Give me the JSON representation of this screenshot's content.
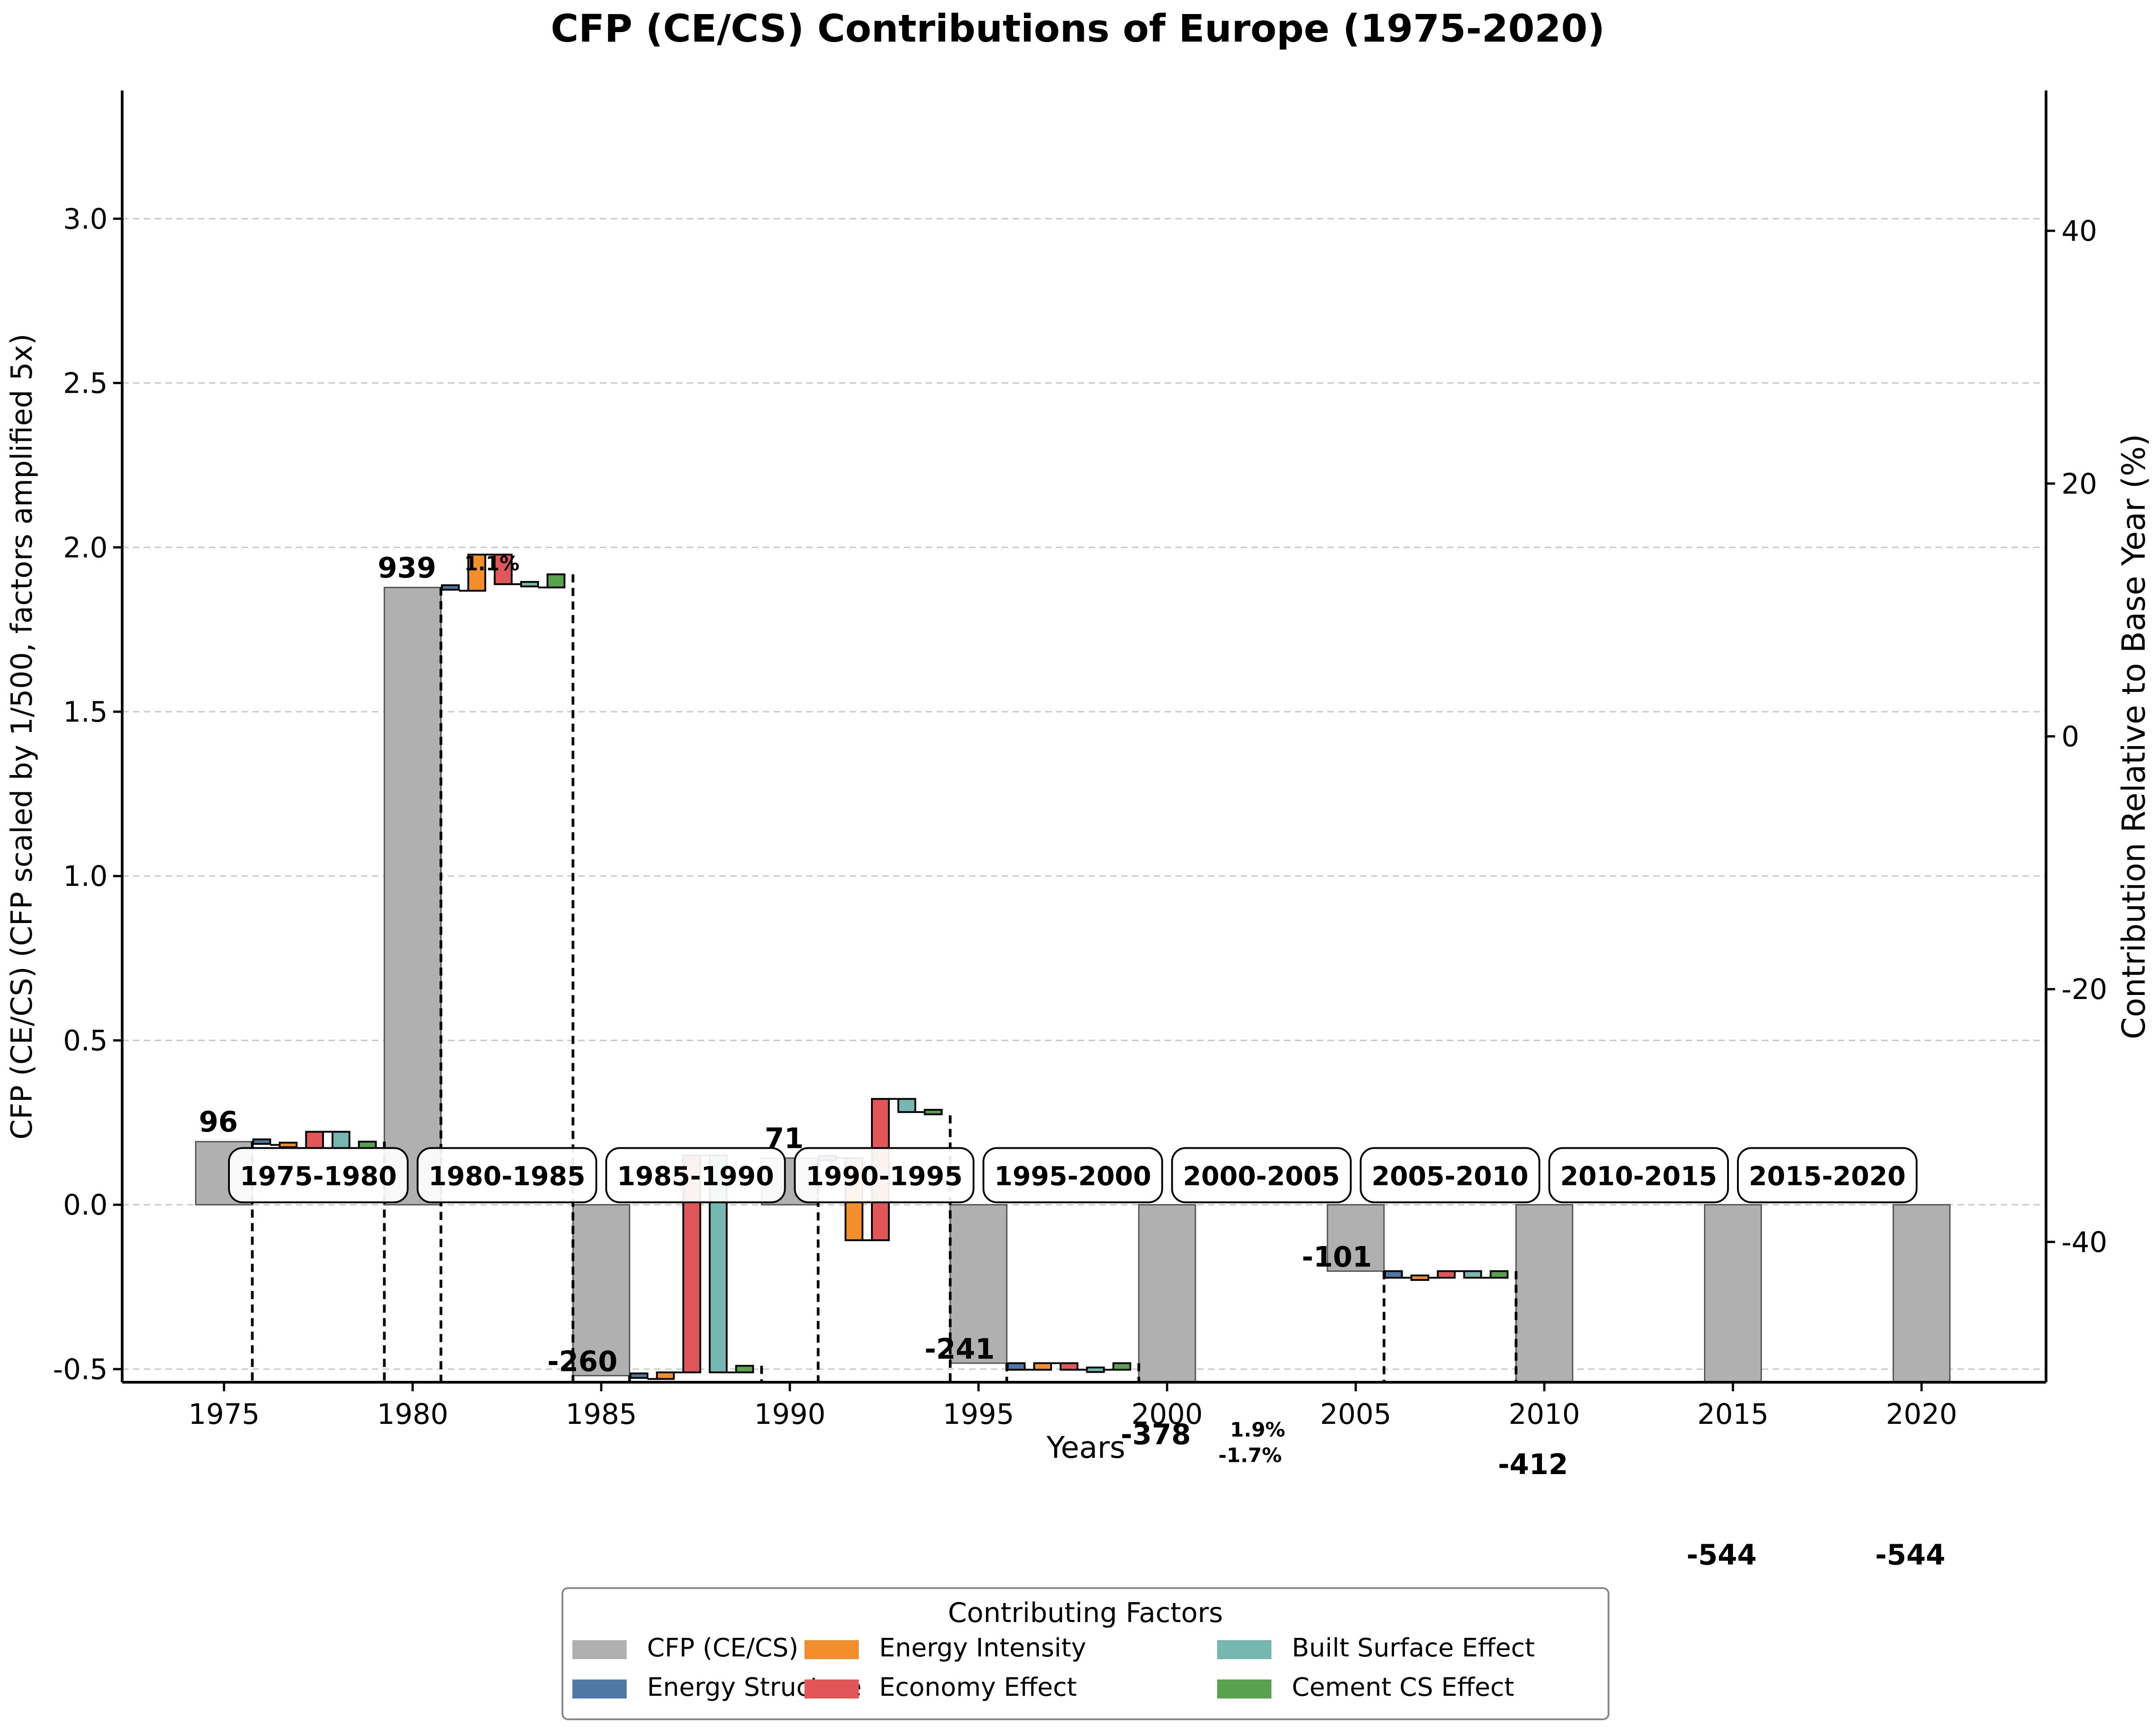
{
  "chart_data": {
    "type": "bar",
    "title": "CFP (CE/CS) Contributions of Europe (1975-2020)",
    "xlabel": "Years",
    "ylabel": "CFP (CE/CS) (CFP scaled by 1/500, factors amplified 5x)",
    "ylabel_right": "Contribution Relative to Base Year (%)",
    "xlim": [
      1972.3,
      2023.3
    ],
    "ylim": [
      -0.54,
      3.39
    ],
    "y2lim": [
      -51.1,
      51.1
    ],
    "xticks": [
      "1975",
      "1980",
      "1985",
      "1990",
      "1995",
      "2000",
      "2005",
      "2010",
      "2015",
      "2020"
    ],
    "yticks": [
      "-0.5",
      "0.0",
      "0.5",
      "1.0",
      "1.5",
      "2.0",
      "2.5",
      "3.0"
    ],
    "y2ticks": [
      "-40",
      "-20",
      "0",
      "20",
      "40"
    ],
    "grid": true,
    "legend": {
      "title": "Contributing Factors",
      "placement": "bottom-center",
      "entries": [
        {
          "label": "CFP (CE/CS)",
          "color": "#b0b0b0"
        },
        {
          "label": "Energy Structure",
          "color": "#4e79a7"
        },
        {
          "label": "Energy Intensity",
          "color": "#f28e2b"
        },
        {
          "label": "Economy Effect",
          "color": "#e15759"
        },
        {
          "label": "Built Surface Effect",
          "color": "#76b7b2"
        },
        {
          "label": "Cement CS Effect",
          "color": "#59a14f"
        }
      ]
    },
    "colors": {
      "cfp": "#b0b0b0",
      "energy_structure": "#4e79a7",
      "energy_intensity": "#f28e2b",
      "economy": "#e15759",
      "built_surface": "#76b7b2",
      "cement_cs": "#59a14f"
    },
    "cfp_bars": [
      {
        "year": 1975,
        "value": 96,
        "label": "96"
      },
      {
        "year": 1980,
        "value": 939,
        "label": "939"
      },
      {
        "year": 1985,
        "value": -260,
        "label": "-260"
      },
      {
        "year": 1990,
        "value": 71,
        "label": "71"
      },
      {
        "year": 1995,
        "value": -241,
        "label": "-241"
      },
      {
        "year": 2000,
        "value": -378,
        "label": "-378"
      },
      {
        "year": 2005,
        "value": -101,
        "label": "-101"
      },
      {
        "year": 2010,
        "value": -412,
        "label": "-412"
      },
      {
        "year": 2015,
        "value": -544,
        "label": "-544"
      },
      {
        "year": 2020,
        "value": -544,
        "label": "-544"
      }
    ],
    "periods": [
      {
        "label": "1975-1980",
        "start_year": 1975
      },
      {
        "label": "1980-1985",
        "start_year": 1980
      },
      {
        "label": "1985-1990",
        "start_year": 1985
      },
      {
        "label": "1990-1995",
        "start_year": 1990
      },
      {
        "label": "1995-2000",
        "start_year": 1995
      },
      {
        "label": "2000-2005",
        "start_year": 2000
      },
      {
        "label": "2005-2010",
        "start_year": 2005
      },
      {
        "label": "2010-2015",
        "start_year": 2010
      },
      {
        "label": "2015-2020",
        "start_year": 2015
      }
    ],
    "factor_steps": [
      {
        "period": "1975-1980",
        "values": [
          -0.01,
          -0.01,
          0.05,
          -0.05,
          0.02
        ]
      },
      {
        "period": "1980-1985",
        "values": [
          -0.01,
          0.11,
          -0.09,
          -0.01,
          0.04
        ]
      },
      {
        "period": "1985-1990",
        "values": [
          -0.01,
          0.02,
          0.66,
          -0.66,
          0.02
        ]
      },
      {
        "period": "1990-1995",
        "values": [
          0.0,
          -0.25,
          0.43,
          -0.04,
          -0.01
        ]
      },
      {
        "period": "1995-2000",
        "values": [
          -0.02,
          0.02,
          -0.02,
          0.0,
          0.02
        ]
      },
      {
        "period": "2000-2005",
        "values": []
      },
      {
        "period": "2005-2010",
        "values": [
          -0.02,
          0.0,
          0.02,
          -0.02,
          0.02
        ]
      },
      {
        "period": "2010-2015",
        "values": []
      },
      {
        "period": "2015-2020",
        "values": []
      }
    ],
    "annotations": [
      {
        "text": "1.1%",
        "x": 1982.1,
        "y": 1.93
      },
      {
        "text": "1.9%",
        "x": 2002.4,
        "y": -0.705
      },
      {
        "text": "-1.7%",
        "x": 2002.2,
        "y": -0.783
      }
    ]
  }
}
